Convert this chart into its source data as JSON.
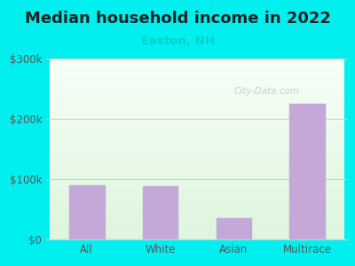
{
  "title": "Median household income in 2022",
  "subtitle": "Easton, NH",
  "subtitle_color": "#00d0d0",
  "title_color": "#222222",
  "background_color": "#00f0f0",
  "categories": [
    "All",
    "White",
    "Asian",
    "Multirace"
  ],
  "values": [
    90000,
    88000,
    35000,
    225000
  ],
  "bar_color": "#c4a8d8",
  "ylim": [
    0,
    300000
  ],
  "yticks": [
    0,
    100000,
    200000,
    300000
  ],
  "ytick_labels": [
    "$0",
    "$100k",
    "$200k",
    "$300k"
  ],
  "watermark": "City-Data.com",
  "tick_color": "#555555",
  "grid_color": "#cccccc",
  "title_fontsize": 13,
  "subtitle_fontsize": 9.5
}
